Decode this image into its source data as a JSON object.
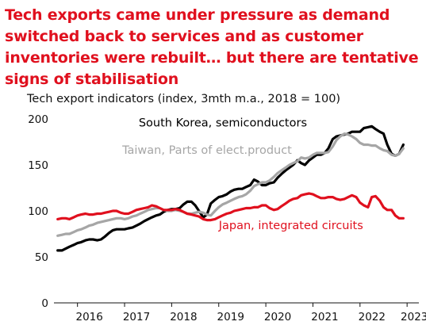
{
  "headline": "Tech exports came under pressure as demand switched back to services and as customer inventories were rebuilt… but there are tentative signs of stabilisation",
  "chart_data": {
    "type": "line",
    "title": "Tech export indicators (index, 3mth m.a., 2018 = 100)",
    "xlabel": "",
    "ylabel": "",
    "xlim": [
      2015.5,
      2023.25
    ],
    "ylim": [
      0,
      200
    ],
    "y_ticks": [
      0,
      50,
      100,
      150,
      200
    ],
    "x_ticks": [
      {
        "label": "2016",
        "value": 2016.0
      },
      {
        "label": "2017",
        "value": 2017.0
      },
      {
        "label": "2018",
        "value": 2018.0
      },
      {
        "label": "2019",
        "value": 2019.0
      },
      {
        "label": "2020",
        "value": 2020.0
      },
      {
        "label": "2021",
        "value": 2021.0
      },
      {
        "label": "2022",
        "value": 2022.0
      },
      {
        "label": "2023",
        "value": 2022.9
      }
    ],
    "grid": false,
    "legend": "inline labels",
    "series": [
      {
        "name": "South Korea, semiconductors",
        "color": "#000000",
        "x": [
          2015.58,
          2015.67,
          2015.75,
          2015.83,
          2015.92,
          2016.0,
          2016.08,
          2016.17,
          2016.25,
          2016.33,
          2016.42,
          2016.5,
          2016.58,
          2016.67,
          2016.75,
          2016.83,
          2016.92,
          2017.0,
          2017.08,
          2017.17,
          2017.25,
          2017.33,
          2017.42,
          2017.5,
          2017.58,
          2017.67,
          2017.75,
          2017.83,
          2017.92,
          2018.0,
          2018.08,
          2018.17,
          2018.25,
          2018.33,
          2018.42,
          2018.5,
          2018.58,
          2018.67,
          2018.75,
          2018.83,
          2018.92,
          2019.0,
          2019.08,
          2019.17,
          2019.25,
          2019.33,
          2019.42,
          2019.5,
          2019.58,
          2019.67,
          2019.75,
          2019.83,
          2019.92,
          2020.0,
          2020.08,
          2020.17,
          2020.25,
          2020.33,
          2020.42,
          2020.5,
          2020.58,
          2020.67,
          2020.75,
          2020.83,
          2020.92,
          2021.0,
          2021.08,
          2021.17,
          2021.25,
          2021.33,
          2021.42,
          2021.5,
          2021.58,
          2021.67,
          2021.75,
          2021.83,
          2021.92,
          2022.0,
          2022.08,
          2022.17,
          2022.25,
          2022.33,
          2022.42,
          2022.5,
          2022.58,
          2022.67,
          2022.75,
          2022.83,
          2022.92
        ],
        "values": [
          57,
          57,
          59,
          61,
          63,
          65,
          66,
          68,
          69,
          69,
          68,
          69,
          72,
          76,
          79,
          80,
          80,
          80,
          81,
          82,
          84,
          86,
          89,
          91,
          93,
          95,
          96,
          99,
          101,
          102,
          102,
          103,
          107,
          110,
          110,
          106,
          100,
          93,
          96,
          108,
          112,
          115,
          116,
          118,
          121,
          123,
          124,
          124,
          126,
          128,
          134,
          132,
          128,
          128,
          130,
          131,
          136,
          140,
          144,
          147,
          150,
          155,
          152,
          150,
          155,
          158,
          161,
          161,
          163,
          168,
          178,
          181,
          182,
          183,
          184,
          186,
          186,
          186,
          190,
          191,
          192,
          189,
          186,
          184,
          172,
          162,
          160,
          162,
          172
        ]
      },
      {
        "name": "Taiwan, Parts of elect.product",
        "color": "#a6a6a6",
        "x": [
          2015.58,
          2015.67,
          2015.75,
          2015.83,
          2015.92,
          2016.0,
          2016.08,
          2016.17,
          2016.25,
          2016.33,
          2016.42,
          2016.5,
          2016.58,
          2016.67,
          2016.75,
          2016.83,
          2016.92,
          2017.0,
          2017.08,
          2017.17,
          2017.25,
          2017.33,
          2017.42,
          2017.5,
          2017.58,
          2017.67,
          2017.75,
          2017.83,
          2017.92,
          2018.0,
          2018.08,
          2018.17,
          2018.25,
          2018.33,
          2018.42,
          2018.5,
          2018.58,
          2018.67,
          2018.75,
          2018.83,
          2018.92,
          2019.0,
          2019.08,
          2019.17,
          2019.25,
          2019.33,
          2019.42,
          2019.5,
          2019.58,
          2019.67,
          2019.75,
          2019.83,
          2019.92,
          2020.0,
          2020.08,
          2020.17,
          2020.25,
          2020.33,
          2020.42,
          2020.5,
          2020.58,
          2020.67,
          2020.75,
          2020.83,
          2020.92,
          2021.0,
          2021.08,
          2021.17,
          2021.25,
          2021.33,
          2021.42,
          2021.5,
          2021.58,
          2021.67,
          2021.75,
          2021.83,
          2021.92,
          2022.0,
          2022.08,
          2022.17,
          2022.25,
          2022.33,
          2022.42,
          2022.5,
          2022.58,
          2022.67,
          2022.75,
          2022.83,
          2022.92
        ],
        "values": [
          73,
          74,
          75,
          75,
          77,
          79,
          80,
          82,
          84,
          85,
          87,
          88,
          89,
          90,
          91,
          92,
          92,
          91,
          92,
          94,
          95,
          97,
          99,
          101,
          102,
          103,
          103,
          101,
          100,
          100,
          101,
          100,
          99,
          97,
          97,
          98,
          99,
          98,
          96,
          95,
          100,
          104,
          107,
          109,
          111,
          113,
          115,
          116,
          118,
          122,
          127,
          129,
          131,
          131,
          133,
          137,
          141,
          144,
          147,
          150,
          152,
          154,
          158,
          157,
          158,
          161,
          163,
          163,
          163,
          164,
          170,
          177,
          181,
          184,
          183,
          181,
          178,
          174,
          172,
          172,
          171,
          171,
          168,
          166,
          165,
          161,
          160,
          162,
          168
        ]
      },
      {
        "name": "Japan, integrated circuits",
        "color": "#e0101e",
        "x": [
          2015.58,
          2015.67,
          2015.75,
          2015.83,
          2015.92,
          2016.0,
          2016.08,
          2016.17,
          2016.25,
          2016.33,
          2016.42,
          2016.5,
          2016.58,
          2016.67,
          2016.75,
          2016.83,
          2016.92,
          2017.0,
          2017.08,
          2017.17,
          2017.25,
          2017.33,
          2017.42,
          2017.5,
          2017.58,
          2017.67,
          2017.75,
          2017.83,
          2017.92,
          2018.0,
          2018.08,
          2018.17,
          2018.25,
          2018.33,
          2018.42,
          2018.5,
          2018.58,
          2018.67,
          2018.75,
          2018.83,
          2018.92,
          2019.0,
          2019.08,
          2019.17,
          2019.25,
          2019.33,
          2019.42,
          2019.5,
          2019.58,
          2019.67,
          2019.75,
          2019.83,
          2019.92,
          2020.0,
          2020.08,
          2020.17,
          2020.25,
          2020.33,
          2020.42,
          2020.5,
          2020.58,
          2020.67,
          2020.75,
          2020.83,
          2020.92,
          2021.0,
          2021.08,
          2021.17,
          2021.25,
          2021.33,
          2021.42,
          2021.5,
          2021.58,
          2021.67,
          2021.75,
          2021.83,
          2021.92,
          2022.0,
          2022.08,
          2022.17,
          2022.25,
          2022.33,
          2022.42,
          2022.5,
          2022.58,
          2022.67,
          2022.75,
          2022.83,
          2022.92
        ],
        "values": [
          91,
          92,
          92,
          91,
          93,
          95,
          96,
          97,
          96,
          96,
          97,
          97,
          98,
          99,
          100,
          100,
          98,
          97,
          97,
          99,
          101,
          102,
          103,
          104,
          106,
          105,
          103,
          101,
          101,
          101,
          102,
          101,
          99,
          97,
          96,
          95,
          94,
          91,
          90,
          90,
          91,
          93,
          95,
          97,
          98,
          100,
          101,
          102,
          103,
          103,
          104,
          104,
          106,
          106,
          103,
          101,
          102,
          105,
          108,
          111,
          113,
          114,
          117,
          118,
          119,
          118,
          116,
          114,
          114,
          115,
          115,
          113,
          112,
          113,
          115,
          117,
          115,
          109,
          106,
          104,
          115,
          116,
          111,
          104,
          101,
          101,
          95,
          92,
          92
        ]
      }
    ],
    "annotations": [
      {
        "text": "South Korea, semiconductors",
        "x": 2017.3,
        "y": 192,
        "color": "#000000"
      },
      {
        "text": "Taiwan, Parts of elect.product",
        "x": 2016.95,
        "y": 162,
        "color": "#a6a6a6"
      },
      {
        "text": "Japan, integrated circuits",
        "x": 2019.0,
        "y": 80,
        "color": "#e0101e"
      }
    ]
  }
}
